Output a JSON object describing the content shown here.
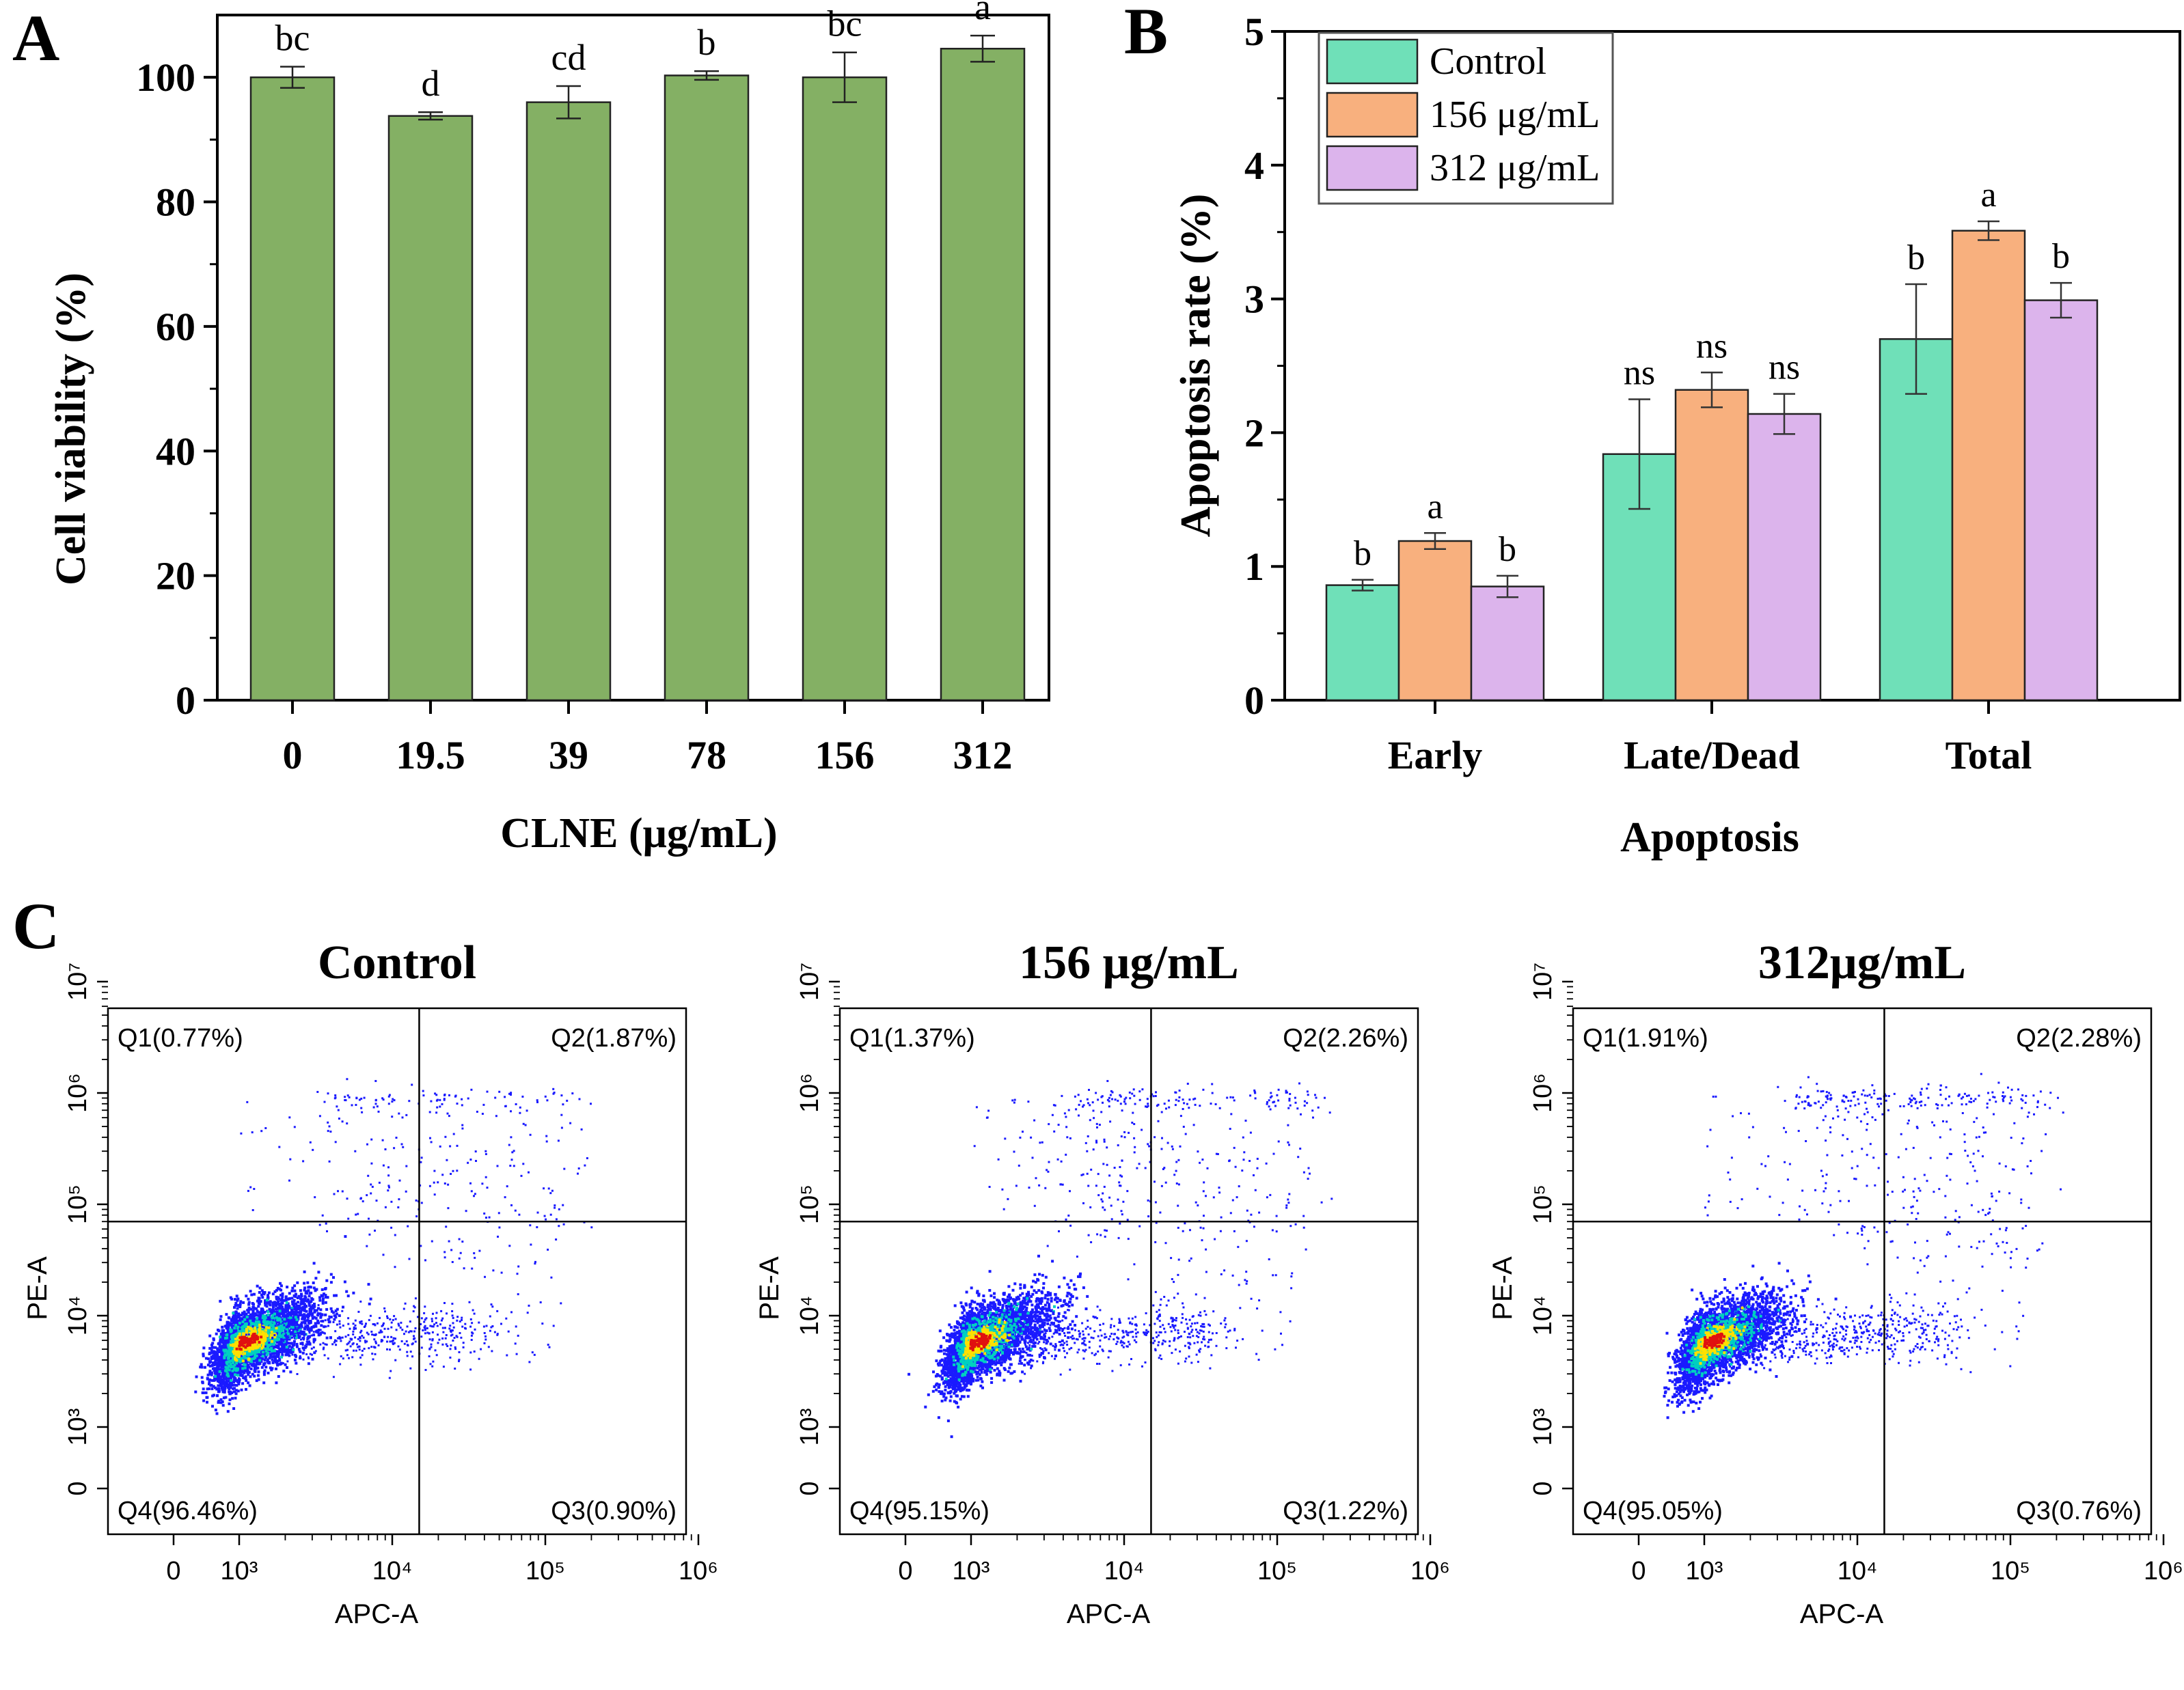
{
  "colors": {
    "bar_a": "#84b064",
    "control": "#6fe0b8",
    "c156": "#f8b07e",
    "c312": "#dcb4ec",
    "axis": "#000000",
    "density_low": "#1a1aff",
    "density_mid": "#00d0c0",
    "density_high": "#ffe000",
    "density_peak": "#e01010"
  },
  "chart_data": [
    {
      "panel": "A",
      "type": "bar",
      "xlabel": "CLNE (μg/mL)",
      "ylabel": "Cell viability (%)",
      "ylim": [
        0,
        110
      ],
      "yticks": [
        0,
        20,
        40,
        60,
        80,
        100
      ],
      "categories": [
        "0",
        "19.5",
        "39",
        "78",
        "156",
        "312"
      ],
      "values": [
        100,
        93.8,
        96.0,
        100.3,
        100.0,
        104.6
      ],
      "errors": [
        1.7,
        0.6,
        2.6,
        0.7,
        4.0,
        2.1
      ],
      "letters": [
        "bc",
        "d",
        "cd",
        "b",
        "bc",
        "a"
      ]
    },
    {
      "panel": "B",
      "type": "bar",
      "xlabel": "Apoptosis",
      "ylabel": "Apoptosis rate (%)",
      "ylim": [
        0,
        5
      ],
      "yticks": [
        0,
        1,
        2,
        3,
        4,
        5
      ],
      "categories": [
        "Early",
        "Late/Dead",
        "Total"
      ],
      "series": [
        {
          "name": "Control",
          "values": [
            0.86,
            1.84,
            2.7
          ],
          "errors": [
            0.04,
            0.41,
            0.41
          ],
          "letters": [
            "b",
            "ns",
            "b"
          ]
        },
        {
          "name": "156 μg/mL",
          "values": [
            1.19,
            2.32,
            3.51
          ],
          "errors": [
            0.06,
            0.13,
            0.07
          ],
          "letters": [
            "a",
            "ns",
            "a"
          ]
        },
        {
          "name": "312 μg/mL",
          "values": [
            0.85,
            2.14,
            2.99
          ],
          "errors": [
            0.08,
            0.15,
            0.13
          ],
          "letters": [
            "b",
            "ns",
            "b"
          ]
        }
      ],
      "legend": "top-left"
    },
    {
      "panel": "C",
      "type": "scatter",
      "xlabel": "APC-A",
      "ylabel": "PE-A",
      "x_ticks": [
        "0",
        "10³",
        "10⁴",
        "10⁵",
        "10⁶"
      ],
      "y_ticks": [
        "0",
        "10³",
        "10⁴",
        "10⁵",
        "10⁶",
        "10⁷"
      ],
      "gate": {
        "x": 15000,
        "y": 70000
      },
      "plots": [
        {
          "title": "Control",
          "quadrants": {
            "q1": "Q1(0.77%)",
            "q2": "Q2(1.87%)",
            "q3": "Q3(0.90%)",
            "q4": "Q4(96.46%)"
          }
        },
        {
          "title": "156 μg/mL",
          "quadrants": {
            "q1": "Q1(1.37%)",
            "q2": "Q2(2.26%)",
            "q3": "Q3(1.22%)",
            "q4": "Q4(95.15%)"
          }
        },
        {
          "title": "312μg/mL",
          "quadrants": {
            "q1": "Q1(1.91%)",
            "q2": "Q2(2.28%)",
            "q3": "Q3(0.76%)",
            "q4": "Q4(95.05%)"
          }
        }
      ]
    }
  ],
  "panels": {
    "a": "A",
    "b": "B",
    "c": "C"
  }
}
